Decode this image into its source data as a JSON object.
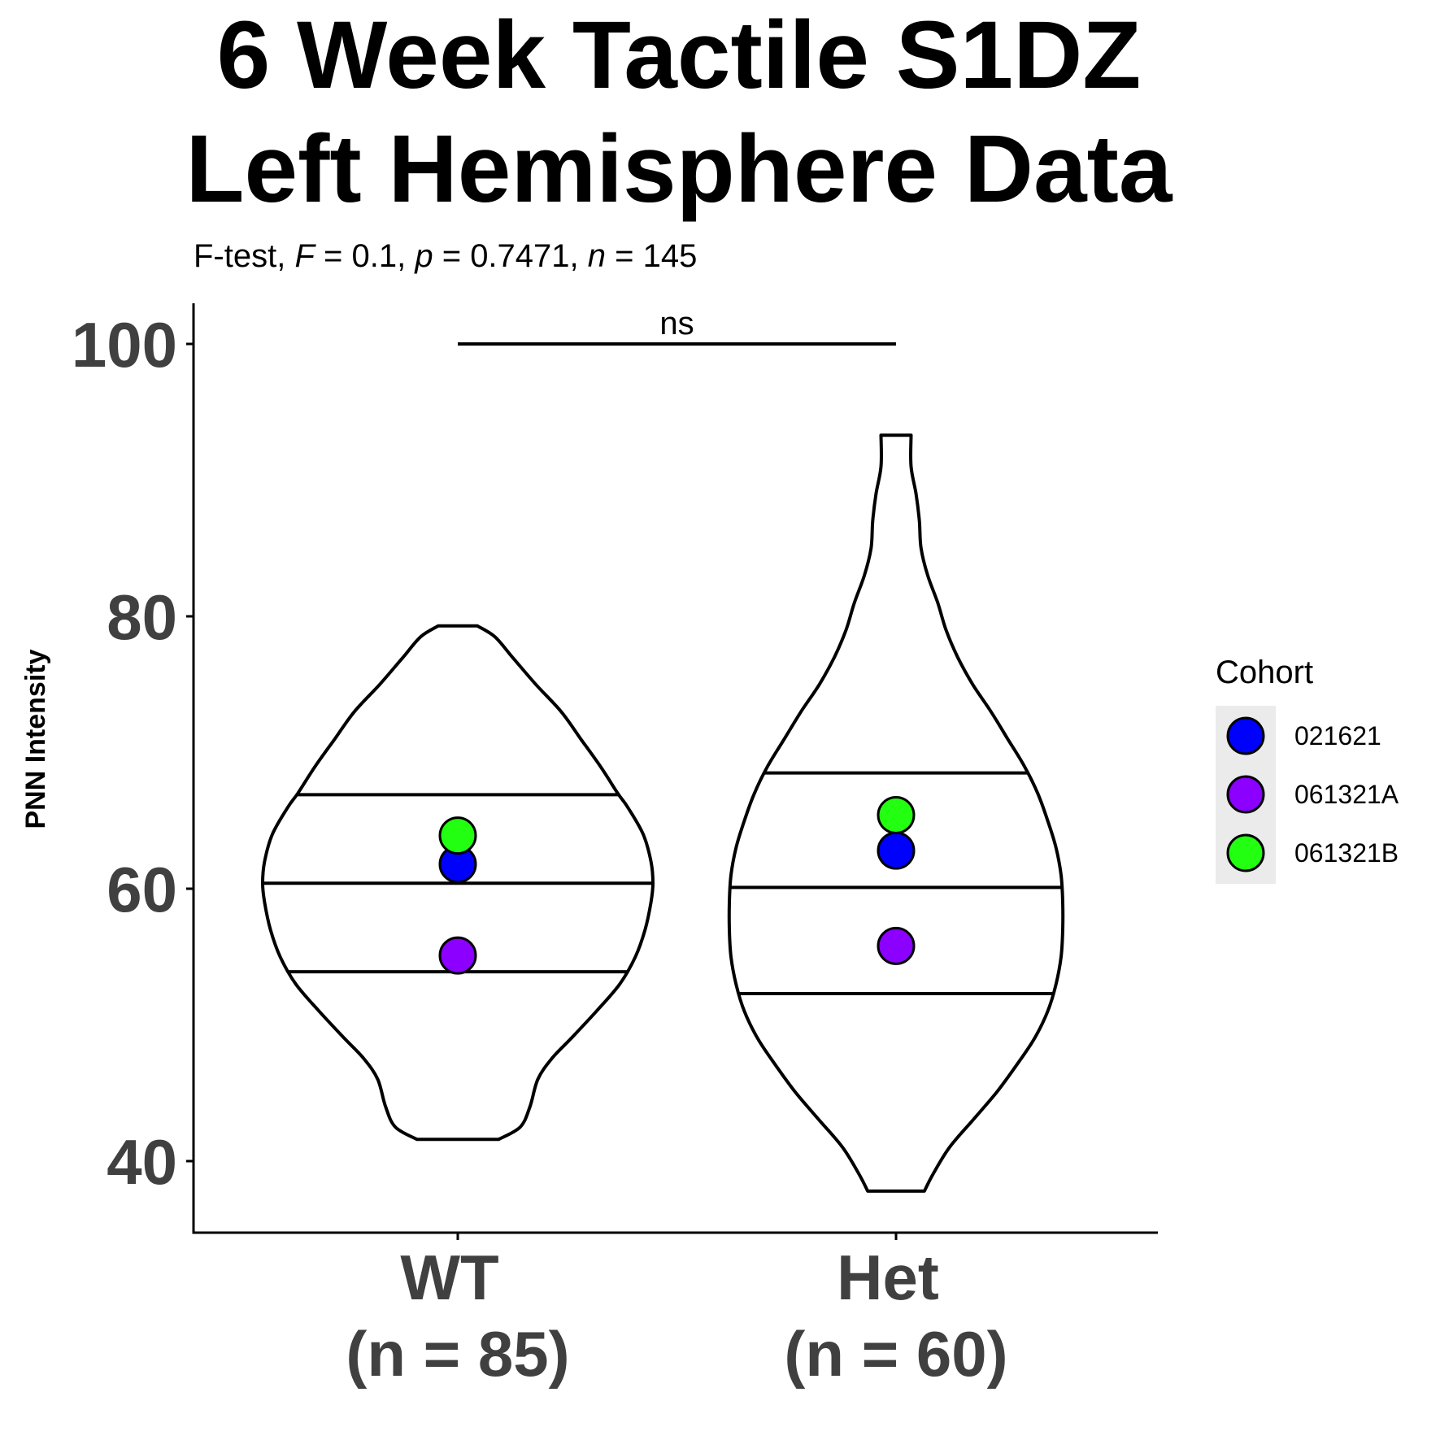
{
  "chart_data": {
    "type": "violin",
    "title_lines": [
      "6 Week Tactile S1DZ",
      "Left Hemisphere Data"
    ],
    "subtitle": {
      "test": "F-test",
      "F_sym": "F",
      "F_val": "0.1",
      "p_sym": "p",
      "p_val": "0.7471",
      "n_sym": "n",
      "n_val": "145"
    },
    "ylabel": "PNN Intensity",
    "xlabel": "",
    "ylim": [
      35,
      103
    ],
    "yticks": [
      40,
      60,
      80,
      100
    ],
    "categories": [
      {
        "label": "WT",
        "sublabel": "(n = 85)"
      },
      {
        "label": "Het",
        "sublabel": "(n = 60)"
      }
    ],
    "violins": [
      {
        "category": "WT",
        "min": 41.6,
        "max": 79.3,
        "quantiles": [
          53.9,
          60.4,
          66.9
        ],
        "profile": [
          [
            41.6,
            0.21
          ],
          [
            42.5,
            0.32
          ],
          [
            44,
            0.37
          ],
          [
            46,
            0.41
          ],
          [
            47.5,
            0.48
          ],
          [
            49,
            0.58
          ],
          [
            51,
            0.71
          ],
          [
            53,
            0.83
          ],
          [
            55,
            0.91
          ],
          [
            57,
            0.96
          ],
          [
            59,
            0.99
          ],
          [
            60.4,
            1.0
          ],
          [
            62,
            0.99
          ],
          [
            64,
            0.95
          ],
          [
            66,
            0.87
          ],
          [
            67,
            0.82
          ],
          [
            69,
            0.73
          ],
          [
            71,
            0.63
          ],
          [
            73,
            0.53
          ],
          [
            75,
            0.4
          ],
          [
            77,
            0.28
          ],
          [
            78.5,
            0.19
          ],
          [
            79.3,
            0.1
          ]
        ]
      },
      {
        "category": "Het",
        "min": 37.8,
        "max": 93.3,
        "quantiles": [
          52.3,
          60.1,
          68.5
        ],
        "profile": [
          [
            37.8,
            0.17
          ],
          [
            39,
            0.22
          ],
          [
            41,
            0.32
          ],
          [
            43,
            0.46
          ],
          [
            45,
            0.6
          ],
          [
            47,
            0.72
          ],
          [
            49,
            0.83
          ],
          [
            51,
            0.91
          ],
          [
            53,
            0.96
          ],
          [
            55,
            0.99
          ],
          [
            57,
            1.0
          ],
          [
            59,
            1.0
          ],
          [
            61,
            0.99
          ],
          [
            63,
            0.96
          ],
          [
            65,
            0.91
          ],
          [
            67,
            0.85
          ],
          [
            69,
            0.77
          ],
          [
            71,
            0.67
          ],
          [
            73,
            0.57
          ],
          [
            75,
            0.46
          ],
          [
            77,
            0.37
          ],
          [
            79,
            0.3
          ],
          [
            81,
            0.25
          ],
          [
            83,
            0.19
          ],
          [
            85,
            0.15
          ],
          [
            87,
            0.14
          ],
          [
            89,
            0.12
          ],
          [
            91,
            0.09
          ],
          [
            93.3,
            0.09
          ]
        ]
      }
    ],
    "points": [
      {
        "category": "WT",
        "cohort": "021621",
        "value": 61.8
      },
      {
        "category": "WT",
        "cohort": "061321A",
        "value": 55.1
      },
      {
        "category": "WT",
        "cohort": "061321B",
        "value": 63.9
      },
      {
        "category": "Het",
        "cohort": "021621",
        "value": 62.8
      },
      {
        "category": "Het",
        "cohort": "061321A",
        "value": 55.8
      },
      {
        "category": "Het",
        "cohort": "061321B",
        "value": 65.4
      }
    ],
    "comparison": {
      "from": "WT",
      "to": "Het",
      "y": 100,
      "label": "ns"
    },
    "legend": {
      "title": "Cohort",
      "position": "right",
      "items": [
        {
          "label": "021621",
          "color": "#0000FF"
        },
        {
          "label": "061321A",
          "color": "#8B00FF"
        },
        {
          "label": "061321B",
          "color": "#22FF11"
        }
      ]
    },
    "grid": false
  }
}
